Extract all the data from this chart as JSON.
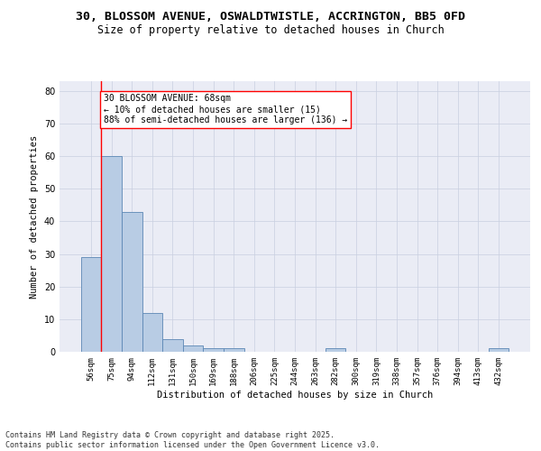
{
  "title_line1": "30, BLOSSOM AVENUE, OSWALDTWISTLE, ACCRINGTON, BB5 0FD",
  "title_line2": "Size of property relative to detached houses in Church",
  "xlabel": "Distribution of detached houses by size in Church",
  "ylabel": "Number of detached properties",
  "categories": [
    "56sqm",
    "75sqm",
    "94sqm",
    "112sqm",
    "131sqm",
    "150sqm",
    "169sqm",
    "188sqm",
    "206sqm",
    "225sqm",
    "244sqm",
    "263sqm",
    "282sqm",
    "300sqm",
    "319sqm",
    "338sqm",
    "357sqm",
    "376sqm",
    "394sqm",
    "413sqm",
    "432sqm"
  ],
  "values": [
    29,
    60,
    43,
    12,
    4,
    2,
    1,
    1,
    0,
    0,
    0,
    0,
    1,
    0,
    0,
    0,
    0,
    0,
    0,
    0,
    1
  ],
  "bar_color": "#b8cce4",
  "bar_edge_color": "#5b87b5",
  "annotation_box_text": "30 BLOSSOM AVENUE: 68sqm\n← 10% of detached houses are smaller (15)\n88% of semi-detached houses are larger (136) →",
  "redline_x": 0.5,
  "ylim": [
    0,
    83
  ],
  "yticks": [
    0,
    10,
    20,
    30,
    40,
    50,
    60,
    70,
    80
  ],
  "grid_color": "#c8cfe0",
  "background_color": "#eaecf5",
  "footer_line1": "Contains HM Land Registry data © Crown copyright and database right 2025.",
  "footer_line2": "Contains public sector information licensed under the Open Government Licence v3.0.",
  "title_fontsize": 9.5,
  "subtitle_fontsize": 8.5,
  "axis_label_fontsize": 7.5,
  "tick_fontsize": 6.5,
  "annotation_fontsize": 7,
  "footer_fontsize": 6
}
